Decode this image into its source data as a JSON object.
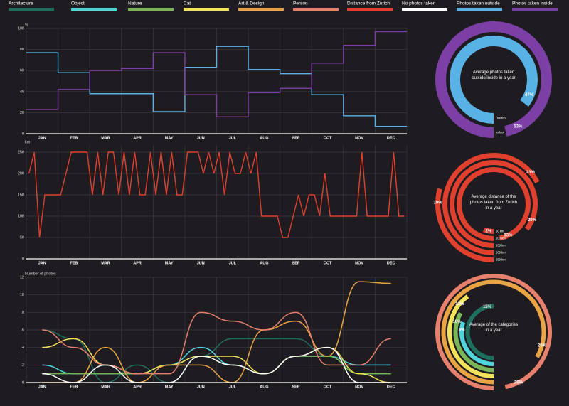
{
  "chart_data": [
    {
      "type": "line",
      "step": true,
      "y_label": "%",
      "categories": [
        "JAN",
        "FEB",
        "MAR",
        "APR",
        "MAY",
        "JUN",
        "JUL",
        "AUG",
        "SEP",
        "OCT",
        "NOV",
        "DEC"
      ],
      "series": [
        {
          "name": "Photos taken outside",
          "color": "#59b2e6",
          "values": [
            77,
            58,
            38,
            38,
            21,
            63,
            83,
            61,
            57,
            37,
            17,
            7
          ]
        },
        {
          "name": "Photos taken inside",
          "color": "#7b3fa6",
          "values": [
            23,
            42,
            60,
            62,
            77,
            37,
            16,
            39,
            43,
            67,
            84,
            97
          ]
        }
      ],
      "ylim": [
        0,
        100
      ],
      "yticks": [
        0,
        20,
        40,
        60,
        80,
        100
      ],
      "grid": true
    },
    {
      "type": "line",
      "y_label": "km",
      "categories": [
        null,
        null,
        null,
        "JAN",
        null,
        null,
        null,
        null,
        null,
        "FEB",
        null,
        null,
        null,
        null,
        null,
        "MAR",
        null,
        null,
        null,
        null,
        null,
        "APR",
        null,
        null,
        null,
        null,
        null,
        "MAY",
        null,
        null,
        null,
        null,
        null,
        "JUN",
        null,
        null,
        null,
        null,
        null,
        "JUL",
        null,
        null,
        null,
        null,
        null,
        "AUG",
        null,
        null,
        null,
        null,
        null,
        "SEP",
        null,
        null,
        null,
        null,
        null,
        "OCT",
        null,
        null,
        null,
        null,
        null,
        "NOV",
        null,
        null,
        null,
        null,
        null,
        "DEC",
        null,
        null
      ],
      "series": [
        {
          "name": "Distance from Zurich",
          "color": "#e0412f",
          "values": [
            200,
            250,
            50,
            150,
            150,
            150,
            150,
            200,
            250,
            250,
            250,
            250,
            150,
            250,
            150,
            250,
            250,
            150,
            250,
            150,
            250,
            150,
            150,
            250,
            150,
            250,
            150,
            250,
            150,
            150,
            250,
            250,
            250,
            200,
            250,
            200,
            250,
            150,
            250,
            200,
            200,
            250,
            200,
            250,
            100,
            100,
            100,
            100,
            50,
            50,
            100,
            150,
            100,
            150,
            150,
            100,
            200,
            100,
            100,
            100,
            100,
            100,
            100,
            250,
            100,
            100,
            100,
            100,
            100,
            250,
            100,
            100
          ]
        }
      ],
      "ylim": [
        0,
        265
      ],
      "yticks": [
        0,
        50,
        100,
        150,
        200,
        250
      ],
      "grid": true
    },
    {
      "type": "line",
      "smooth": true,
      "y_label": "Number of photos",
      "categories": [
        "JAN",
        "FEB",
        "MAR",
        "APR",
        "MAY",
        "JUN",
        "JUL",
        "AUG",
        "SEP",
        "OCT",
        "NOV",
        "DEC"
      ],
      "series": [
        {
          "name": "Architecture",
          "color": "#1f6f60",
          "values": [
            6,
            5,
            0,
            2,
            0,
            3,
            5,
            5,
            5,
            3,
            1,
            1
          ]
        },
        {
          "name": "Object",
          "color": "#4fd6dc",
          "values": [
            2,
            1,
            1,
            1,
            2,
            4,
            2,
            1,
            3,
            3,
            2,
            2
          ]
        },
        {
          "name": "Nature",
          "color": "#78b657",
          "values": [
            1,
            1,
            1,
            1,
            2,
            3,
            2,
            1,
            3,
            3,
            1,
            1
          ]
        },
        {
          "name": "Cat",
          "color": "#f2e35a",
          "values": [
            4,
            5,
            2,
            1,
            2,
            3,
            3,
            1,
            3,
            4,
            1,
            0
          ]
        },
        {
          "name": "Art & Design",
          "color": "#eba444",
          "values": [
            0,
            0,
            4,
            0,
            2,
            2,
            0,
            6,
            7,
            3,
            11.5,
            11.3
          ]
        },
        {
          "name": "Person",
          "color": "#e8806e",
          "values": [
            6,
            4,
            2,
            1,
            1,
            8,
            7,
            6,
            8,
            2,
            2,
            5
          ]
        },
        {
          "name": "No photos taken",
          "color": "#ffffff",
          "values": [
            1,
            0,
            2,
            0,
            0,
            3,
            2,
            1,
            3,
            4,
            0,
            0
          ]
        }
      ],
      "ylim": [
        0,
        12
      ],
      "yticks": [
        0,
        2,
        4,
        6,
        8,
        10,
        12
      ],
      "grid": true
    },
    {
      "type": "radial_bar",
      "title": "Average photos taken outside/inside in a year",
      "categories": [
        "Indoor",
        "Outdoor"
      ],
      "values": [
        53,
        47
      ],
      "value_labels": [
        "53%",
        "47%"
      ],
      "colors": [
        "#7b3fa6",
        "#59b2e6"
      ],
      "ylim": [
        0,
        55
      ]
    },
    {
      "type": "radial_bar",
      "title": "Average distance of the photos taken from Zurich in a year",
      "categories": [
        "250 km",
        "200 km",
        "150 km",
        "100 km",
        "50 km"
      ],
      "values": [
        10,
        23,
        29,
        33,
        2
      ],
      "value_labels": [
        "10%",
        "23%",
        "29%",
        "33%",
        "2%"
      ],
      "colors": [
        "#e0412f",
        "#e0412f",
        "#e0412f",
        "#e0412f",
        "#e0412f"
      ],
      "ylim": [
        0,
        34
      ]
    },
    {
      "type": "radial_bar",
      "title": "Average of the categories in a year",
      "values": [
        29,
        25,
        12,
        10,
        9,
        15
      ],
      "value_labels": [
        "29%",
        "25%",
        "12%",
        "10%",
        "9%",
        "15%"
      ],
      "colors": [
        "#e8806e",
        "#eba444",
        "#f2e35a",
        "#78b657",
        "#4fd6dc",
        "#1f6f60"
      ],
      "ylim": [
        0,
        30
      ]
    }
  ]
}
